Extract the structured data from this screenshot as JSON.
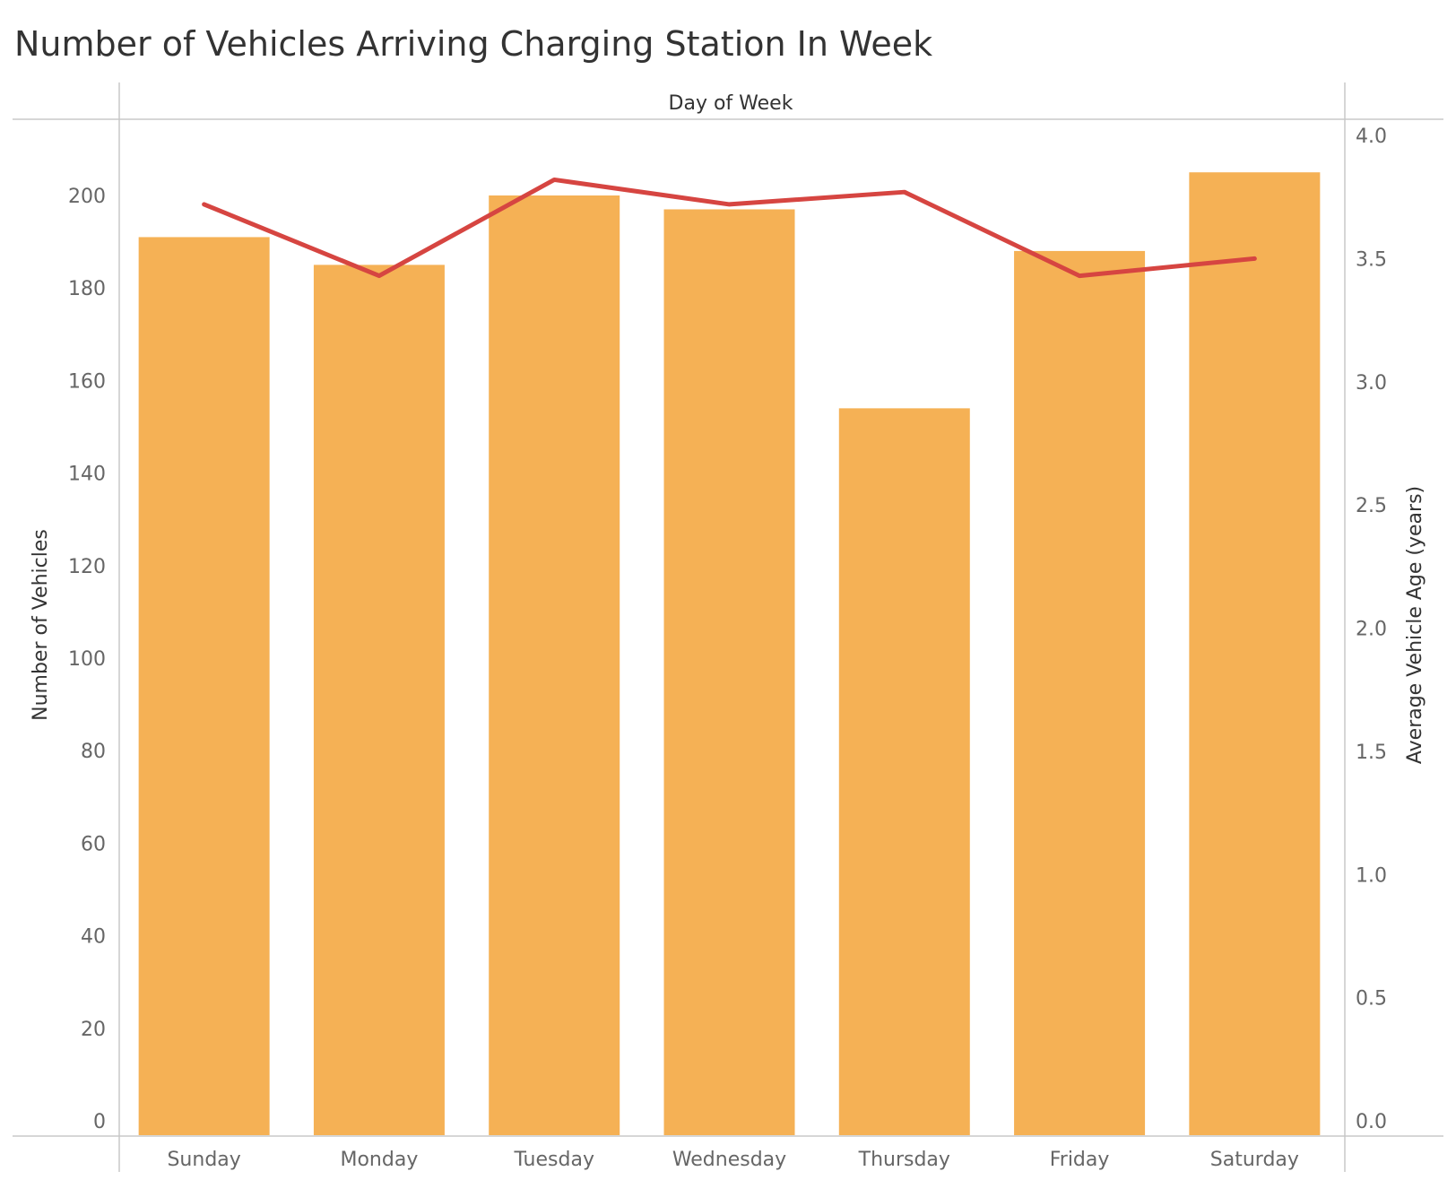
{
  "chart_data": {
    "type": "bar",
    "title": "Number of Vehicles Arriving Charging Station In Week",
    "header_label": "Day of Week",
    "categories": [
      "Sunday",
      "Monday",
      "Tuesday",
      "Wednesday",
      "Thursday",
      "Friday",
      "Saturday"
    ],
    "series": [
      {
        "type": "bar",
        "axis": "left",
        "color": "#F5B155",
        "values": [
          191,
          185,
          200,
          197,
          154,
          188,
          205
        ]
      },
      {
        "type": "line",
        "axis": "right",
        "color": "#D64541",
        "values": [
          3.72,
          3.43,
          3.82,
          3.72,
          3.77,
          3.43,
          3.5
        ]
      }
    ],
    "y_left": {
      "label": "Number of Vehicles",
      "ylim": [
        0,
        210
      ],
      "ticks": [
        "0",
        "20",
        "40",
        "60",
        "80",
        "100",
        "120",
        "140",
        "160",
        "180",
        "200"
      ]
    },
    "y_right": {
      "label": "Average Vehicle Age (years)",
      "ylim": [
        0,
        3.9
      ],
      "ticks": [
        "0.0",
        "0.5",
        "1.0",
        "1.5",
        "2.0",
        "2.5",
        "3.0",
        "3.5",
        "4.0"
      ]
    },
    "grid": false,
    "legend": "none"
  }
}
